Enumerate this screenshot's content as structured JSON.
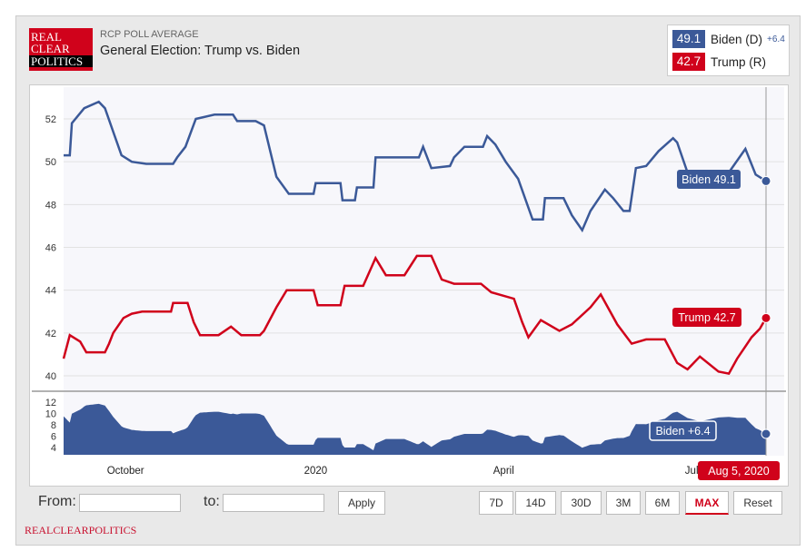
{
  "header": {
    "logo_text": "REAL CLEAR POLITICS",
    "subtitle": "RCP POLL AVERAGE",
    "title": "General Election: Trump vs. Biden"
  },
  "legend": {
    "biden_value": "49.1",
    "biden_label": "Biden (D)",
    "biden_spread": "+6.4",
    "trump_value": "42.7",
    "trump_label": "Trump (R)"
  },
  "colors": {
    "biden": "#3b5998",
    "trump": "#d0021b"
  },
  "controls": {
    "from_label": "From:",
    "to_label": "to:",
    "apply": "Apply",
    "ranges": [
      "7D",
      "14D",
      "30D",
      "3M",
      "6M",
      "MAX",
      "Reset"
    ],
    "active": "MAX"
  },
  "footer": "REALCLEARPOLITICS",
  "chart_data": {
    "type": "line",
    "x_unit": "days since 2019-09-01",
    "x_range": [
      0,
      340
    ],
    "x_ticks": [
      {
        "day": 30,
        "label": "October"
      },
      {
        "day": 122,
        "label": "2020"
      },
      {
        "day": 213,
        "label": "April"
      },
      {
        "day": 304,
        "label": "Jul"
      }
    ],
    "ylim": [
      39.5,
      53.5
    ],
    "y_ticks": [
      40,
      42,
      44,
      46,
      48,
      50,
      52
    ],
    "spread_ylim": [
      2.7,
      13
    ],
    "spread_ticks": [
      4,
      6,
      8,
      10,
      12
    ],
    "series": [
      {
        "name": "Biden",
        "points": [
          [
            0,
            50.3
          ],
          [
            3,
            50.3
          ],
          [
            4,
            51.8
          ],
          [
            10,
            52.5
          ],
          [
            17,
            52.8
          ],
          [
            20,
            52.5
          ],
          [
            28,
            50.3
          ],
          [
            33,
            50
          ],
          [
            40,
            49.9
          ],
          [
            53,
            49.9
          ],
          [
            55,
            50.2
          ],
          [
            59,
            50.7
          ],
          [
            64,
            52
          ],
          [
            73,
            52.2
          ],
          [
            82,
            52.2
          ],
          [
            84,
            51.9
          ],
          [
            93,
            51.9
          ],
          [
            97,
            51.7
          ],
          [
            103,
            49.3
          ],
          [
            109,
            48.5
          ],
          [
            121,
            48.5
          ],
          [
            122,
            49
          ],
          [
            134,
            49
          ],
          [
            135,
            48.2
          ],
          [
            141,
            48.2
          ],
          [
            142,
            48.8
          ],
          [
            150,
            48.8
          ],
          [
            151,
            50.2
          ],
          [
            172,
            50.2
          ],
          [
            174,
            50.7
          ],
          [
            178,
            49.7
          ],
          [
            187,
            49.8
          ],
          [
            189,
            50.2
          ],
          [
            194,
            50.7
          ],
          [
            203,
            50.7
          ],
          [
            205,
            51.2
          ],
          [
            209,
            50.8
          ],
          [
            214,
            50
          ],
          [
            220,
            49.2
          ],
          [
            227,
            47.3
          ],
          [
            232,
            47.3
          ],
          [
            233,
            48.3
          ],
          [
            242,
            48.3
          ],
          [
            246,
            47.5
          ],
          [
            251,
            46.8
          ],
          [
            255,
            47.7
          ],
          [
            262,
            48.7
          ],
          [
            266,
            48.3
          ],
          [
            271,
            47.7
          ],
          [
            274,
            47.7
          ],
          [
            277,
            49.7
          ],
          [
            282,
            49.8
          ],
          [
            288,
            50.5
          ],
          [
            295,
            51.1
          ],
          [
            297,
            50.9
          ],
          [
            302,
            49.5
          ],
          [
            322,
            49.5
          ],
          [
            330,
            50.6
          ],
          [
            335,
            49.4
          ],
          [
            340,
            49.1
          ]
        ]
      },
      {
        "name": "Trump",
        "points": [
          [
            0,
            40.8
          ],
          [
            3,
            41.9
          ],
          [
            8,
            41.6
          ],
          [
            11,
            41.1
          ],
          [
            20,
            41.1
          ],
          [
            22,
            41.5
          ],
          [
            24,
            42
          ],
          [
            29,
            42.7
          ],
          [
            33,
            42.9
          ],
          [
            38,
            43
          ],
          [
            52,
            43
          ],
          [
            53,
            43.4
          ],
          [
            60,
            43.4
          ],
          [
            63,
            42.5
          ],
          [
            66,
            41.9
          ],
          [
            75,
            41.9
          ],
          [
            81,
            42.3
          ],
          [
            86,
            41.9
          ],
          [
            95,
            41.9
          ],
          [
            97,
            42.1
          ],
          [
            103,
            43.2
          ],
          [
            108,
            44
          ],
          [
            121,
            44
          ],
          [
            123,
            43.3
          ],
          [
            134,
            43.3
          ],
          [
            136,
            44.2
          ],
          [
            145,
            44.2
          ],
          [
            151,
            45.5
          ],
          [
            156,
            44.7
          ],
          [
            165,
            44.7
          ],
          [
            171,
            45.6
          ],
          [
            178,
            45.6
          ],
          [
            183,
            44.5
          ],
          [
            189,
            44.3
          ],
          [
            202,
            44.3
          ],
          [
            207,
            43.9
          ],
          [
            218,
            43.6
          ],
          [
            222,
            42.5
          ],
          [
            225,
            41.8
          ],
          [
            231,
            42.6
          ],
          [
            240,
            42.1
          ],
          [
            246,
            42.4
          ],
          [
            255,
            43.2
          ],
          [
            260,
            43.8
          ],
          [
            268,
            42.4
          ],
          [
            275,
            41.5
          ],
          [
            282,
            41.7
          ],
          [
            291,
            41.7
          ],
          [
            297,
            40.6
          ],
          [
            302,
            40.3
          ],
          [
            308,
            40.9
          ],
          [
            317,
            40.2
          ],
          [
            322,
            40.1
          ],
          [
            326,
            40.8
          ],
          [
            333,
            41.8
          ],
          [
            337,
            42.2
          ],
          [
            340,
            42.7
          ]
        ]
      }
    ],
    "annotations": {
      "biden_label": "Biden 49.1",
      "trump_label": "Trump 42.7",
      "spread_label": "Biden +6.4",
      "date_label": "Aug 5, 2020"
    }
  }
}
